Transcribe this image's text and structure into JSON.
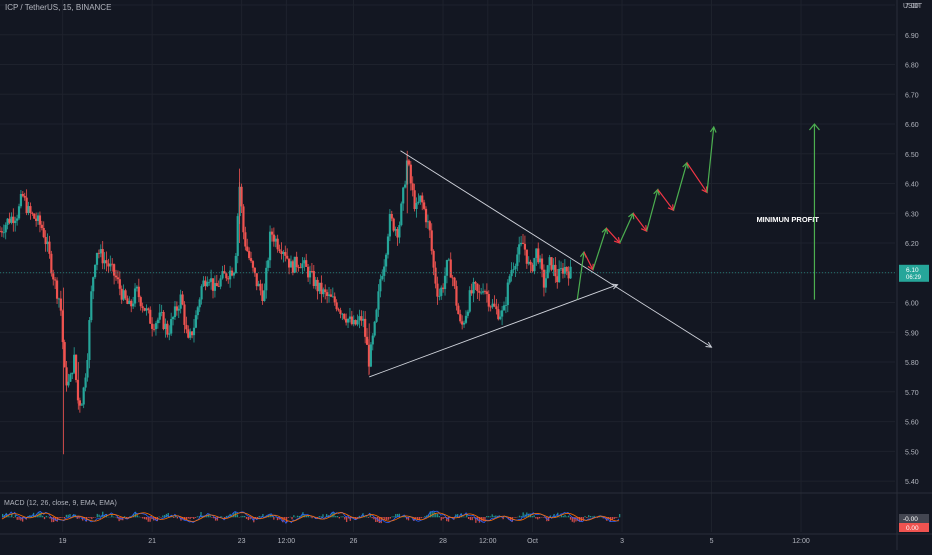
{
  "header": {
    "symbol_line": "ICP / TetherUS, 15, BINANCE"
  },
  "price_axis": {
    "unit": "USDT"
  },
  "macd": {
    "label": "MACD (12, 26, close, 9, EMA, EMA)",
    "value_tag": "-0.00",
    "value_tag2": "0.00"
  },
  "annotations": {
    "minimum_profit": "MINIMUN PROFIT"
  },
  "last_price": {
    "value": "6.10",
    "countdown": "06:29"
  },
  "colors": {
    "up": "#26a69a",
    "down": "#ef5350",
    "background": "#131722",
    "grid": "#1e222d",
    "line_white": "#d1d4dc",
    "arrow_green": "#4caf50",
    "arrow_red": "#f23645",
    "price_tag": "#26a69a",
    "macd_line": "#2962ff",
    "signal_line": "#ff6d00"
  },
  "chart_data": {
    "type": "candlestick",
    "y_ticks": [
      "7.00",
      "6.90",
      "6.80",
      "6.70",
      "6.60",
      "6.50",
      "6.40",
      "6.30",
      "6.20",
      "6.10",
      "6.00",
      "5.90",
      "5.80",
      "5.70",
      "5.60",
      "5.50",
      "5.40"
    ],
    "ylim": [
      5.37,
      7.0
    ],
    "x_ticks": [
      "19",
      "21",
      "23",
      "12:00",
      "26",
      "28",
      "12:00",
      "Oct",
      "3",
      "5",
      "12:00"
    ],
    "x_tick_positions": [
      0,
      2,
      4,
      5,
      6.5,
      8.5,
      9.5,
      10.5,
      12.5,
      14.5,
      16.5
    ],
    "xlim": [
      -1.4,
      18.6
    ],
    "price_path": [
      [
        -1.4,
        6.24
      ],
      [
        -1.2,
        6.28
      ],
      [
        -1.0,
        6.3
      ],
      [
        -0.9,
        6.36
      ],
      [
        -0.75,
        6.3
      ],
      [
        -0.6,
        6.28
      ],
      [
        -0.45,
        6.25
      ],
      [
        -0.35,
        6.19
      ],
      [
        -0.25,
        6.12
      ],
      [
        -0.15,
        6.05
      ],
      [
        -0.05,
        6.0
      ],
      [
        0.05,
        5.75
      ],
      [
        0.15,
        5.72
      ],
      [
        0.25,
        5.82
      ],
      [
        0.35,
        5.66
      ],
      [
        0.45,
        5.68
      ],
      [
        0.55,
        5.82
      ],
      [
        0.65,
        6.05
      ],
      [
        0.75,
        6.18
      ],
      [
        0.9,
        6.15
      ],
      [
        1.05,
        6.12
      ],
      [
        1.2,
        6.08
      ],
      [
        1.35,
        6.02
      ],
      [
        1.5,
        5.98
      ],
      [
        1.65,
        6.04
      ],
      [
        1.8,
        5.99
      ],
      [
        2.0,
        5.93
      ],
      [
        2.2,
        5.95
      ],
      [
        2.35,
        5.9
      ],
      [
        2.5,
        5.96
      ],
      [
        2.65,
        6.02
      ],
      [
        2.8,
        5.86
      ],
      [
        2.95,
        5.93
      ],
      [
        3.1,
        6.05
      ],
      [
        3.25,
        6.1
      ],
      [
        3.4,
        6.04
      ],
      [
        3.55,
        6.08
      ],
      [
        3.7,
        6.1
      ],
      [
        3.85,
        6.12
      ],
      [
        3.95,
        6.4
      ],
      [
        4.05,
        6.22
      ],
      [
        4.2,
        6.13
      ],
      [
        4.35,
        6.06
      ],
      [
        4.5,
        6.02
      ],
      [
        4.65,
        6.24
      ],
      [
        4.8,
        6.2
      ],
      [
        4.95,
        6.18
      ],
      [
        5.1,
        6.12
      ],
      [
        5.3,
        6.14
      ],
      [
        5.5,
        6.1
      ],
      [
        5.7,
        6.05
      ],
      [
        5.9,
        6.02
      ],
      [
        6.1,
        6.0
      ],
      [
        6.3,
        5.96
      ],
      [
        6.5,
        5.92
      ],
      [
        6.7,
        5.95
      ],
      [
        6.85,
        5.8
      ],
      [
        7.0,
        5.94
      ],
      [
        7.1,
        6.08
      ],
      [
        7.2,
        6.15
      ],
      [
        7.3,
        6.28
      ],
      [
        7.4,
        6.26
      ],
      [
        7.5,
        6.24
      ],
      [
        7.6,
        6.35
      ],
      [
        7.7,
        6.48
      ],
      [
        7.8,
        6.38
      ],
      [
        7.9,
        6.31
      ],
      [
        8.0,
        6.35
      ],
      [
        8.1,
        6.3
      ],
      [
        8.2,
        6.24
      ],
      [
        8.3,
        6.1
      ],
      [
        8.4,
        6.02
      ],
      [
        8.5,
        6.06
      ],
      [
        8.6,
        6.13
      ],
      [
        8.7,
        6.1
      ],
      [
        8.8,
        6.0
      ],
      [
        8.9,
        5.91
      ],
      [
        9.0,
        5.96
      ],
      [
        9.1,
        6.02
      ],
      [
        9.2,
        6.05
      ],
      [
        9.3,
        6.02
      ],
      [
        9.4,
        6.06
      ],
      [
        9.55,
        6.0
      ],
      [
        9.7,
        5.97
      ],
      [
        9.85,
        5.96
      ],
      [
        10.0,
        6.1
      ],
      [
        10.15,
        6.16
      ],
      [
        10.3,
        6.2
      ],
      [
        10.45,
        6.1
      ],
      [
        10.6,
        6.18
      ],
      [
        10.75,
        6.06
      ],
      [
        10.9,
        6.14
      ],
      [
        11.05,
        6.08
      ],
      [
        11.2,
        6.12
      ],
      [
        11.35,
        6.1
      ]
    ],
    "trendlines": [
      {
        "from": [
          7.55,
          6.51
        ],
        "to": [
          14.5,
          5.85
        ]
      },
      {
        "from": [
          6.85,
          5.75
        ],
        "to": [
          12.4,
          6.06
        ]
      }
    ],
    "projection_zigzag": [
      [
        11.5,
        6.01
      ],
      [
        11.65,
        6.17
      ],
      [
        11.85,
        6.11
      ],
      [
        12.15,
        6.25
      ],
      [
        12.45,
        6.2
      ],
      [
        12.75,
        6.3
      ],
      [
        13.05,
        6.24
      ],
      [
        13.3,
        6.38
      ],
      [
        13.65,
        6.31
      ],
      [
        13.95,
        6.47
      ],
      [
        14.4,
        6.37
      ],
      [
        14.55,
        6.59
      ]
    ],
    "profit_arrow": {
      "x": 16.8,
      "from": 6.01,
      "to": 6.6
    },
    "ohlc_seed": 7
  }
}
